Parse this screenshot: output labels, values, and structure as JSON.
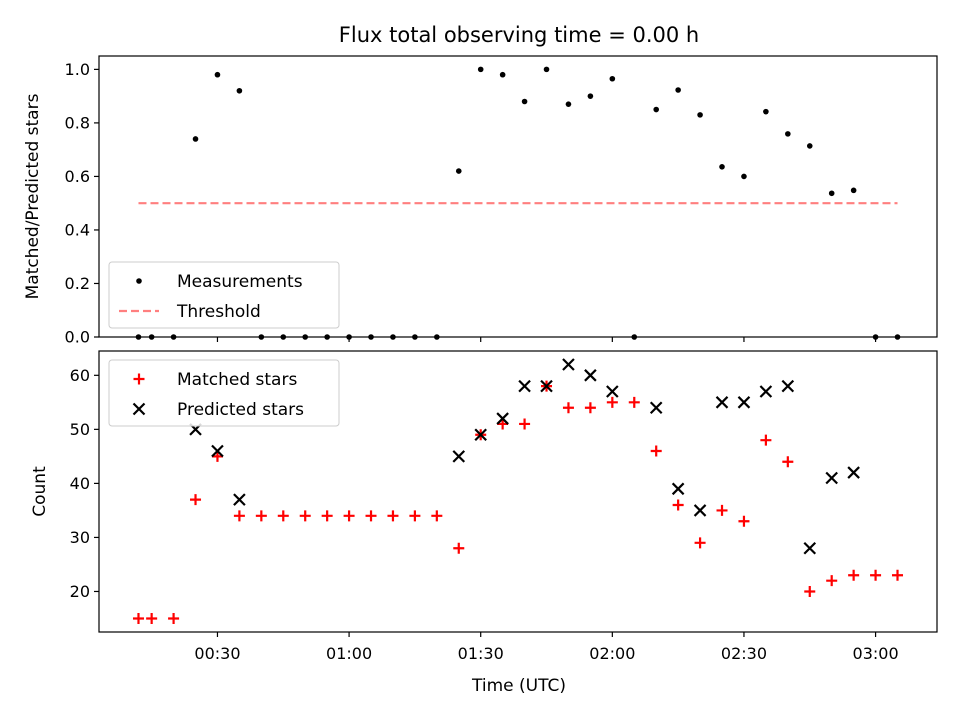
{
  "figure": {
    "title": "Flux total observing time = 0.00 h",
    "xlabel": "Time (UTC)"
  },
  "chart_data": [
    {
      "type": "scatter",
      "ylabel": "Matched/Predicted stars",
      "ylim": [
        0.0,
        1.05
      ],
      "xlim": [
        "00:03",
        "03:14"
      ],
      "yticks": [
        0.0,
        0.2,
        0.4,
        0.6,
        0.8,
        1.0
      ],
      "ytick_labels": [
        "0.0",
        "0.2",
        "0.4",
        "0.6",
        "0.8",
        "1.0"
      ],
      "xticks": [
        "00:30",
        "01:00",
        "01:30",
        "02:00",
        "02:30",
        "03:00"
      ],
      "show_xtick_labels": false,
      "grid": false,
      "legend_position": "lower-left",
      "series": [
        {
          "name": "Measurements",
          "marker": "dot",
          "color": "#000000",
          "points": [
            {
              "x": "00:12",
              "y": 0.0
            },
            {
              "x": "00:15",
              "y": 0.0
            },
            {
              "x": "00:20",
              "y": 0.0
            },
            {
              "x": "00:25",
              "y": 0.74
            },
            {
              "x": "00:30",
              "y": 0.98
            },
            {
              "x": "00:35",
              "y": 0.92
            },
            {
              "x": "00:40",
              "y": 0.0
            },
            {
              "x": "00:45",
              "y": 0.0
            },
            {
              "x": "00:50",
              "y": 0.0
            },
            {
              "x": "00:55",
              "y": 0.0
            },
            {
              "x": "01:00",
              "y": 0.0
            },
            {
              "x": "01:05",
              "y": 0.0
            },
            {
              "x": "01:10",
              "y": 0.0
            },
            {
              "x": "01:15",
              "y": 0.0
            },
            {
              "x": "01:20",
              "y": 0.0
            },
            {
              "x": "01:25",
              "y": 0.62
            },
            {
              "x": "01:30",
              "y": 1.0
            },
            {
              "x": "01:35",
              "y": 0.98
            },
            {
              "x": "01:40",
              "y": 0.88
            },
            {
              "x": "01:45",
              "y": 1.0
            },
            {
              "x": "01:50",
              "y": 0.87
            },
            {
              "x": "01:55",
              "y": 0.9
            },
            {
              "x": "02:00",
              "y": 0.965
            },
            {
              "x": "02:05",
              "y": 0.0
            },
            {
              "x": "02:10",
              "y": 0.85
            },
            {
              "x": "02:15",
              "y": 0.923
            },
            {
              "x": "02:20",
              "y": 0.83
            },
            {
              "x": "02:25",
              "y": 0.636
            },
            {
              "x": "02:30",
              "y": 0.6
            },
            {
              "x": "02:35",
              "y": 0.842
            },
            {
              "x": "02:40",
              "y": 0.759
            },
            {
              "x": "02:45",
              "y": 0.714
            },
            {
              "x": "02:50",
              "y": 0.537
            },
            {
              "x": "02:55",
              "y": 0.548
            },
            {
              "x": "03:00",
              "y": 0.0
            },
            {
              "x": "03:05",
              "y": 0.0
            }
          ]
        },
        {
          "name": "Threshold",
          "style": "dashed-line",
          "color": "#ff7f7f",
          "points": [
            {
              "x": "00:12",
              "y": 0.5
            },
            {
              "x": "03:05",
              "y": 0.5
            }
          ]
        }
      ]
    },
    {
      "type": "scatter",
      "ylabel": "Count",
      "ylim": [
        12.5,
        64.5
      ],
      "xlim": [
        "00:03",
        "03:14"
      ],
      "yticks": [
        20,
        30,
        40,
        50,
        60
      ],
      "ytick_labels": [
        "20",
        "30",
        "40",
        "50",
        "60"
      ],
      "xticks": [
        "00:30",
        "01:00",
        "01:30",
        "02:00",
        "02:30",
        "03:00"
      ],
      "xtick_labels": [
        "00:30",
        "01:00",
        "01:30",
        "02:00",
        "02:30",
        "03:00"
      ],
      "grid": false,
      "legend_position": "upper-left",
      "series": [
        {
          "name": "Matched stars",
          "marker": "plus",
          "color": "#ff0000",
          "points": [
            {
              "x": "00:12",
              "y": 15
            },
            {
              "x": "00:15",
              "y": 15
            },
            {
              "x": "00:20",
              "y": 15
            },
            {
              "x": "00:25",
              "y": 37
            },
            {
              "x": "00:30",
              "y": 45
            },
            {
              "x": "00:35",
              "y": 34
            },
            {
              "x": "00:40",
              "y": 34
            },
            {
              "x": "00:45",
              "y": 34
            },
            {
              "x": "00:50",
              "y": 34
            },
            {
              "x": "00:55",
              "y": 34
            },
            {
              "x": "01:00",
              "y": 34
            },
            {
              "x": "01:05",
              "y": 34
            },
            {
              "x": "01:10",
              "y": 34
            },
            {
              "x": "01:15",
              "y": 34
            },
            {
              "x": "01:20",
              "y": 34
            },
            {
              "x": "01:25",
              "y": 28
            },
            {
              "x": "01:30",
              "y": 49
            },
            {
              "x": "01:35",
              "y": 51
            },
            {
              "x": "01:40",
              "y": 51
            },
            {
              "x": "01:45",
              "y": 58
            },
            {
              "x": "01:50",
              "y": 54
            },
            {
              "x": "01:55",
              "y": 54
            },
            {
              "x": "02:00",
              "y": 55
            },
            {
              "x": "02:05",
              "y": 55
            },
            {
              "x": "02:10",
              "y": 46
            },
            {
              "x": "02:15",
              "y": 36
            },
            {
              "x": "02:20",
              "y": 29
            },
            {
              "x": "02:25",
              "y": 35
            },
            {
              "x": "02:30",
              "y": 33
            },
            {
              "x": "02:35",
              "y": 48
            },
            {
              "x": "02:40",
              "y": 44
            },
            {
              "x": "02:45",
              "y": 20
            },
            {
              "x": "02:50",
              "y": 22
            },
            {
              "x": "02:55",
              "y": 23
            },
            {
              "x": "03:00",
              "y": 23
            },
            {
              "x": "03:05",
              "y": 23
            }
          ]
        },
        {
          "name": "Predicted stars",
          "marker": "x",
          "color": "#000000",
          "points": [
            {
              "x": "00:25",
              "y": 50
            },
            {
              "x": "00:30",
              "y": 46
            },
            {
              "x": "00:35",
              "y": 37
            },
            {
              "x": "01:25",
              "y": 45
            },
            {
              "x": "01:30",
              "y": 49
            },
            {
              "x": "01:35",
              "y": 52
            },
            {
              "x": "01:40",
              "y": 58
            },
            {
              "x": "01:45",
              "y": 58
            },
            {
              "x": "01:50",
              "y": 62
            },
            {
              "x": "01:55",
              "y": 60
            },
            {
              "x": "02:00",
              "y": 57
            },
            {
              "x": "02:10",
              "y": 54
            },
            {
              "x": "02:15",
              "y": 39
            },
            {
              "x": "02:20",
              "y": 35
            },
            {
              "x": "02:25",
              "y": 55
            },
            {
              "x": "02:30",
              "y": 55
            },
            {
              "x": "02:35",
              "y": 57
            },
            {
              "x": "02:40",
              "y": 58
            },
            {
              "x": "02:45",
              "y": 28
            },
            {
              "x": "02:50",
              "y": 41
            },
            {
              "x": "02:55",
              "y": 42
            }
          ]
        }
      ]
    }
  ]
}
